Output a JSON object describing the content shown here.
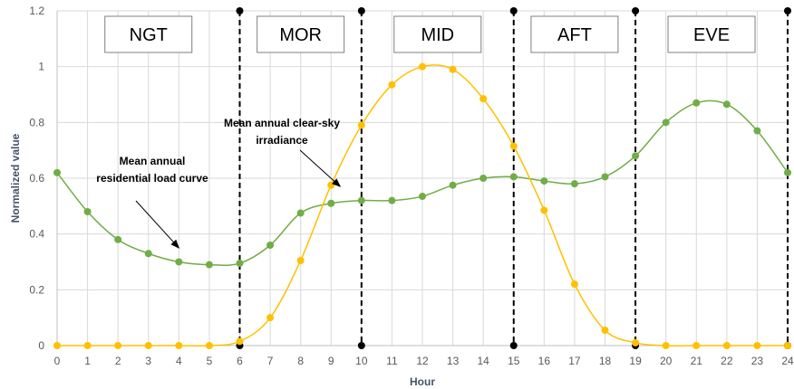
{
  "chart_data": {
    "type": "line",
    "xlabel": "Hour",
    "ylabel": "Normalized value",
    "x": [
      0,
      1,
      2,
      3,
      4,
      5,
      6,
      7,
      8,
      9,
      10,
      11,
      12,
      13,
      14,
      15,
      16,
      17,
      18,
      19,
      20,
      21,
      22,
      23,
      24
    ],
    "xlim": [
      0,
      24
    ],
    "ylim": [
      0,
      1.2
    ],
    "x_ticks": [
      "0",
      "1",
      "2",
      "3",
      "4",
      "5",
      "6",
      "7",
      "8",
      "9",
      "10",
      "11",
      "12",
      "13",
      "14",
      "15",
      "16",
      "17",
      "18",
      "19",
      "20",
      "21",
      "22",
      "23",
      "24"
    ],
    "y_ticks": [
      "0",
      "0.2",
      "0.4",
      "0.6",
      "0.8",
      "1",
      "1.2"
    ],
    "grid": true,
    "colors": {
      "load": "#70ad47",
      "irradiance": "#ffc000",
      "grid": "#d9d9d9",
      "divider": "#000000"
    },
    "series": [
      {
        "key": "load",
        "values": [
          0.62,
          0.48,
          0.38,
          0.33,
          0.3,
          0.29,
          0.295,
          0.36,
          0.475,
          0.51,
          0.52,
          0.52,
          0.535,
          0.575,
          0.6,
          0.605,
          0.59,
          0.58,
          0.605,
          0.68,
          0.8,
          0.87,
          0.865,
          0.77,
          0.62
        ]
      },
      {
        "key": "irradiance",
        "values": [
          0,
          0,
          0,
          0,
          0,
          0,
          0.015,
          0.1,
          0.305,
          0.575,
          0.79,
          0.935,
          1.0,
          0.99,
          0.885,
          0.715,
          0.485,
          0.22,
          0.055,
          0.01,
          0,
          0,
          0,
          0,
          0
        ]
      }
    ],
    "dividers": [
      6,
      10,
      15,
      19,
      24
    ],
    "periods": [
      {
        "label": "NGT",
        "from": 0,
        "to": 6
      },
      {
        "label": "MOR",
        "from": 6,
        "to": 10
      },
      {
        "label": "MID",
        "from": 10,
        "to": 15
      },
      {
        "label": "AFT",
        "from": 15,
        "to": 19
      },
      {
        "label": "EVE",
        "from": 19,
        "to": 24
      }
    ],
    "annotations": [
      {
        "lines": [
          "Mean annual",
          "residential load curve"
        ],
        "arrow_to": [
          4,
          0.35
        ]
      },
      {
        "lines": [
          "Mean annual clear-sky",
          "irradiance"
        ],
        "arrow_to": [
          9.3,
          0.57
        ]
      }
    ]
  }
}
